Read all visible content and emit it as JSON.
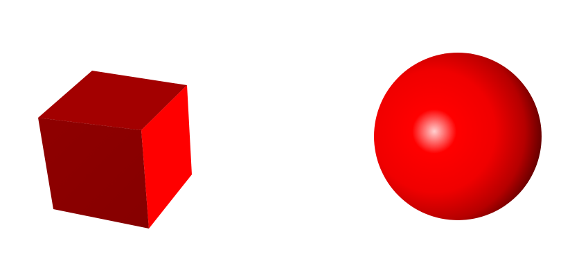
{
  "scene": {
    "background_color": "#ffffff",
    "objects": [
      {
        "shape": "cube",
        "color": "#ff0000",
        "face_colors": {
          "top": "#a30000",
          "front": "#8b0000",
          "side": "#ff0000"
        }
      },
      {
        "shape": "sphere",
        "color": "#ff0000",
        "shading": {
          "highlight": "#ffd0d0",
          "base": "#ff0000",
          "shadow": "#5a0000"
        }
      }
    ]
  }
}
